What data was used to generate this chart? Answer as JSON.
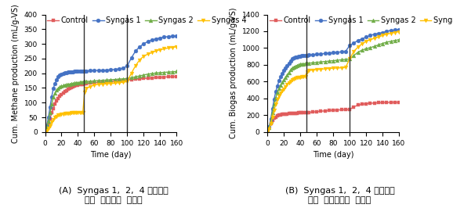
{
  "left": {
    "ylabel": "Cum. Methane production (mL/g-VS)",
    "xlabel": "Time (day)",
    "caption_line1": "(A)  Syngas 1,  2,  4 실험군의",
    "caption_line2": "누적  메탄가스  발생량",
    "ylim": [
      0,
      400
    ],
    "xlim": [
      0,
      160
    ],
    "yticks": [
      0,
      50,
      100,
      150,
      200,
      250,
      300,
      350,
      400
    ],
    "xticks": [
      0,
      20,
      40,
      60,
      80,
      100,
      120,
      140,
      160
    ],
    "vlines": [
      47,
      100
    ],
    "series": {
      "Control": {
        "color": "#e05c5c",
        "marker": "s",
        "x": [
          0,
          2,
          4,
          6,
          8,
          10,
          12,
          14,
          16,
          18,
          20,
          22,
          24,
          26,
          28,
          30,
          32,
          34,
          36,
          38,
          40,
          42,
          44,
          46,
          48,
          50,
          55,
          60,
          65,
          70,
          75,
          80,
          85,
          90,
          95,
          100,
          105,
          110,
          115,
          120,
          125,
          130,
          135,
          140,
          145,
          150,
          155,
          160
        ],
        "y": [
          0,
          10,
          25,
          45,
          65,
          80,
          95,
          105,
          115,
          122,
          128,
          133,
          137,
          141,
          145,
          148,
          151,
          154,
          156,
          158,
          160,
          161,
          162,
          163,
          164,
          165,
          166,
          167,
          169,
          170,
          171,
          172,
          173,
          175,
          176,
          178,
          179,
          180,
          181,
          182,
          183,
          184,
          185,
          186,
          187,
          188,
          188,
          189
        ]
      },
      "Syngas 1": {
        "color": "#4472c4",
        "marker": "o",
        "x": [
          0,
          2,
          4,
          6,
          8,
          10,
          12,
          14,
          16,
          18,
          20,
          22,
          24,
          26,
          28,
          30,
          32,
          34,
          36,
          38,
          40,
          42,
          44,
          46,
          48,
          50,
          55,
          60,
          65,
          70,
          75,
          80,
          85,
          90,
          95,
          100,
          105,
          110,
          115,
          120,
          125,
          130,
          135,
          140,
          145,
          150,
          155,
          160
        ],
        "y": [
          0,
          20,
          50,
          85,
          120,
          148,
          165,
          178,
          188,
          193,
          197,
          200,
          202,
          203,
          204,
          205,
          205,
          205,
          206,
          206,
          206,
          206,
          207,
          207,
          208,
          208,
          209,
          209,
          210,
          210,
          211,
          212,
          213,
          215,
          217,
          225,
          252,
          275,
          290,
          300,
          308,
          313,
          317,
          320,
          323,
          325,
          326,
          327
        ]
      },
      "Syngas 2": {
        "color": "#70ad47",
        "marker": "^",
        "x": [
          0,
          2,
          4,
          6,
          8,
          10,
          12,
          14,
          16,
          18,
          20,
          22,
          24,
          26,
          28,
          30,
          32,
          34,
          36,
          38,
          40,
          42,
          44,
          46,
          48,
          50,
          55,
          60,
          65,
          70,
          75,
          80,
          85,
          90,
          95,
          100,
          105,
          110,
          115,
          120,
          125,
          130,
          135,
          140,
          145,
          150,
          155,
          160
        ],
        "y": [
          0,
          15,
          38,
          65,
          95,
          118,
          132,
          142,
          148,
          153,
          156,
          158,
          160,
          161,
          162,
          163,
          164,
          165,
          166,
          167,
          168,
          169,
          170,
          171,
          172,
          172,
          173,
          174,
          175,
          176,
          177,
          178,
          179,
          180,
          181,
          182,
          185,
          188,
          191,
          194,
          197,
          199,
          201,
          202,
          203,
          204,
          205,
          206
        ]
      },
      "Syngas 4": {
        "color": "#ffc000",
        "marker": "v",
        "x": [
          0,
          2,
          4,
          6,
          8,
          10,
          12,
          14,
          16,
          18,
          20,
          22,
          24,
          26,
          28,
          30,
          32,
          34,
          36,
          38,
          40,
          42,
          44,
          46,
          48,
          50,
          55,
          60,
          65,
          70,
          75,
          80,
          85,
          90,
          95,
          100,
          105,
          110,
          115,
          120,
          125,
          130,
          135,
          140,
          145,
          150,
          155,
          160
        ],
        "y": [
          0,
          5,
          12,
          22,
          33,
          42,
          50,
          54,
          57,
          59,
          61,
          62,
          63,
          63,
          64,
          64,
          65,
          65,
          65,
          66,
          66,
          66,
          67,
          67,
          135,
          148,
          155,
          160,
          162,
          163,
          164,
          165,
          166,
          168,
          169,
          172,
          200,
          225,
          245,
          258,
          265,
          270,
          276,
          280,
          283,
          286,
          288,
          290
        ]
      }
    }
  },
  "right": {
    "ylabel": "Cum. Biogas production (mL/g-VS)",
    "xlabel": "Time (day)",
    "caption_line1": "(B)  Syngas 1,  2,  4 실험군의",
    "caption_line2": "누적  바이오가스  생성량",
    "ylim": [
      0,
      1400
    ],
    "xlim": [
      0,
      160
    ],
    "yticks": [
      0,
      200,
      400,
      600,
      800,
      1000,
      1200,
      1400
    ],
    "xticks": [
      0,
      20,
      40,
      60,
      80,
      100,
      120,
      140,
      160
    ],
    "vlines": [
      47,
      100
    ],
    "series": {
      "Control": {
        "color": "#e05c5c",
        "marker": "s",
        "x": [
          0,
          2,
          4,
          6,
          8,
          10,
          12,
          14,
          16,
          18,
          20,
          22,
          24,
          26,
          28,
          30,
          32,
          34,
          36,
          38,
          40,
          42,
          44,
          46,
          48,
          50,
          55,
          60,
          65,
          70,
          75,
          80,
          85,
          90,
          95,
          100,
          105,
          110,
          115,
          120,
          125,
          130,
          135,
          140,
          145,
          150,
          155,
          160
        ],
        "y": [
          0,
          55,
          100,
          140,
          165,
          180,
          195,
          203,
          207,
          210,
          212,
          214,
          217,
          219,
          221,
          222,
          224,
          225,
          226,
          227,
          228,
          229,
          230,
          231,
          232,
          233,
          238,
          243,
          248,
          252,
          256,
          260,
          263,
          264,
          266,
          268,
          300,
          320,
          330,
          338,
          342,
          345,
          348,
          350,
          352,
          353,
          354,
          354
        ]
      },
      "Syngas 1": {
        "color": "#4472c4",
        "marker": "o",
        "x": [
          0,
          2,
          4,
          6,
          8,
          10,
          12,
          14,
          16,
          18,
          20,
          22,
          24,
          26,
          28,
          30,
          32,
          34,
          36,
          38,
          40,
          42,
          44,
          46,
          48,
          50,
          55,
          60,
          65,
          70,
          75,
          80,
          85,
          90,
          95,
          100,
          105,
          110,
          115,
          120,
          125,
          130,
          135,
          140,
          145,
          150,
          155,
          160
        ],
        "y": [
          0,
          60,
          160,
          280,
          390,
          480,
          550,
          610,
          660,
          700,
          730,
          760,
          790,
          820,
          850,
          870,
          880,
          890,
          895,
          900,
          905,
          908,
          910,
          912,
          915,
          918,
          922,
          926,
          930,
          935,
          940,
          945,
          950,
          955,
          960,
          1030,
          1060,
          1090,
          1110,
          1130,
          1150,
          1165,
          1175,
          1185,
          1200,
          1210,
          1215,
          1220
        ]
      },
      "Syngas 2": {
        "color": "#70ad47",
        "marker": "^",
        "x": [
          0,
          2,
          4,
          6,
          8,
          10,
          12,
          14,
          16,
          18,
          20,
          22,
          24,
          26,
          28,
          30,
          32,
          34,
          36,
          38,
          40,
          42,
          44,
          46,
          48,
          50,
          55,
          60,
          65,
          70,
          75,
          80,
          85,
          90,
          95,
          100,
          105,
          110,
          115,
          120,
          125,
          130,
          135,
          140,
          145,
          150,
          155,
          160
        ],
        "y": [
          0,
          50,
          130,
          230,
          330,
          410,
          470,
          520,
          560,
          590,
          620,
          650,
          680,
          710,
          740,
          760,
          775,
          785,
          793,
          800,
          806,
          810,
          812,
          815,
          818,
          820,
          825,
          830,
          835,
          840,
          845,
          850,
          855,
          860,
          866,
          870,
          910,
          950,
          975,
          993,
          1005,
          1020,
          1038,
          1055,
          1070,
          1080,
          1090,
          1100
        ]
      },
      "Syngas 4": {
        "color": "#ffc000",
        "marker": "v",
        "x": [
          0,
          2,
          4,
          6,
          8,
          10,
          12,
          14,
          16,
          18,
          20,
          22,
          24,
          26,
          28,
          30,
          32,
          34,
          36,
          38,
          40,
          42,
          44,
          46,
          48,
          50,
          55,
          60,
          65,
          70,
          75,
          80,
          85,
          90,
          95,
          100,
          105,
          110,
          115,
          120,
          125,
          130,
          135,
          140,
          145,
          150,
          155,
          160
        ],
        "y": [
          0,
          40,
          100,
          180,
          260,
          330,
          385,
          425,
          460,
          490,
          515,
          540,
          565,
          588,
          608,
          625,
          635,
          643,
          648,
          652,
          655,
          658,
          660,
          662,
          720,
          732,
          738,
          743,
          748,
          753,
          757,
          760,
          762,
          765,
          768,
          870,
          960,
          1010,
          1050,
          1080,
          1100,
          1115,
          1130,
          1150,
          1165,
          1175,
          1185,
          1195
        ]
      }
    }
  },
  "legend_order": [
    "Control",
    "Syngas 1",
    "Syngas 2",
    "Syngas 4"
  ],
  "markersize": 3.5,
  "linewidth": 1.0,
  "caption_fontsize": 8,
  "axis_label_fontsize": 7,
  "tick_fontsize": 6.5,
  "legend_fontsize": 7
}
